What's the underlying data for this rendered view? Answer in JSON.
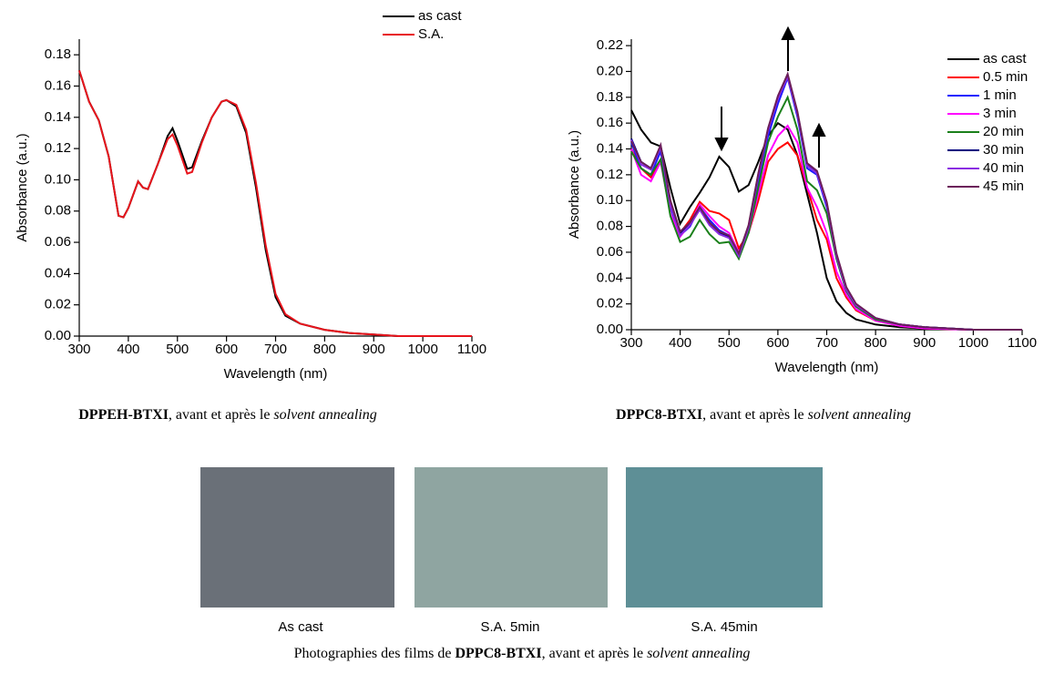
{
  "chart_data": [
    {
      "type": "line",
      "xlabel": "Wavelength (nm)",
      "ylabel": "Absorbance (a.u.)",
      "x": [
        300,
        320,
        340,
        360,
        380,
        390,
        400,
        420,
        430,
        440,
        460,
        480,
        490,
        500,
        520,
        530,
        550,
        570,
        590,
        600,
        620,
        640,
        660,
        680,
        700,
        720,
        750,
        800,
        850,
        900,
        950,
        1000,
        1100
      ],
      "series": [
        {
          "name": "as cast",
          "color": "#000000",
          "values": [
            0.17,
            0.15,
            0.138,
            0.115,
            0.077,
            0.076,
            0.082,
            0.099,
            0.095,
            0.094,
            0.11,
            0.128,
            0.133,
            0.125,
            0.107,
            0.108,
            0.125,
            0.14,
            0.15,
            0.151,
            0.147,
            0.13,
            0.095,
            0.055,
            0.025,
            0.013,
            0.008,
            0.004,
            0.002,
            0.001,
            0.0,
            0.0,
            0.0
          ]
        },
        {
          "name": "S.A.",
          "color": "#e8141c",
          "values": [
            0.17,
            0.15,
            0.138,
            0.115,
            0.077,
            0.076,
            0.082,
            0.099,
            0.095,
            0.094,
            0.11,
            0.126,
            0.129,
            0.122,
            0.104,
            0.105,
            0.124,
            0.14,
            0.15,
            0.151,
            0.148,
            0.132,
            0.098,
            0.058,
            0.027,
            0.014,
            0.008,
            0.004,
            0.002,
            0.001,
            0.0,
            0.0,
            0.0
          ]
        }
      ],
      "xlim": [
        300,
        1100
      ],
      "xticks": [
        300,
        400,
        500,
        600,
        700,
        800,
        900,
        1000,
        1100
      ],
      "ylim": [
        0,
        0.19
      ],
      "yticks": [
        {
          "value": 0,
          "label": "0.00"
        },
        {
          "value": 0.02,
          "label": "0.02"
        },
        {
          "value": 0.04,
          "label": "0.04"
        },
        {
          "value": 0.06,
          "label": "0.06"
        },
        {
          "value": 0.08,
          "label": "0.08"
        },
        {
          "value": 0.1,
          "label": "0.10"
        },
        {
          "value": 0.12,
          "label": "0.12"
        },
        {
          "value": 0.14,
          "label": "0.14"
        },
        {
          "value": 0.16,
          "label": "0.16"
        },
        {
          "value": 0.18,
          "label": "0.18"
        }
      ]
    },
    {
      "type": "line",
      "xlabel": "Wavelength (nm)",
      "ylabel": "Absorbance (a.u.)",
      "x": [
        300,
        320,
        340,
        360,
        380,
        400,
        420,
        440,
        460,
        480,
        500,
        520,
        540,
        560,
        580,
        600,
        620,
        640,
        660,
        680,
        700,
        720,
        740,
        760,
        800,
        850,
        900,
        1000,
        1100
      ],
      "series": [
        {
          "name": "as cast",
          "color": "#000000",
          "values": [
            0.17,
            0.155,
            0.145,
            0.142,
            0.11,
            0.082,
            0.095,
            0.106,
            0.118,
            0.134,
            0.126,
            0.107,
            0.112,
            0.13,
            0.15,
            0.16,
            0.155,
            0.135,
            0.105,
            0.075,
            0.04,
            0.022,
            0.013,
            0.008,
            0.004,
            0.002,
            0.001,
            0,
            0
          ]
        },
        {
          "name": "0.5 min",
          "color": "#ff0000",
          "values": [
            0.14,
            0.125,
            0.118,
            0.13,
            0.095,
            0.075,
            0.085,
            0.099,
            0.092,
            0.09,
            0.085,
            0.063,
            0.075,
            0.1,
            0.13,
            0.14,
            0.145,
            0.135,
            0.11,
            0.085,
            0.07,
            0.04,
            0.025,
            0.015,
            0.007,
            0.003,
            0.001,
            0,
            0
          ]
        },
        {
          "name": "1 min",
          "color": "#1a1aff",
          "values": [
            0.145,
            0.125,
            0.12,
            0.138,
            0.095,
            0.073,
            0.08,
            0.095,
            0.085,
            0.077,
            0.073,
            0.058,
            0.078,
            0.115,
            0.15,
            0.175,
            0.195,
            0.165,
            0.125,
            0.12,
            0.095,
            0.055,
            0.03,
            0.018,
            0.008,
            0.004,
            0.002,
            0,
            0
          ]
        },
        {
          "name": "3 min",
          "color": "#ff00ff",
          "values": [
            0.14,
            0.12,
            0.115,
            0.13,
            0.09,
            0.072,
            0.082,
            0.097,
            0.088,
            0.08,
            0.075,
            0.06,
            0.075,
            0.105,
            0.135,
            0.15,
            0.158,
            0.145,
            0.11,
            0.095,
            0.075,
            0.045,
            0.027,
            0.016,
            0.007,
            0.003,
            0.001,
            0,
            0
          ]
        },
        {
          "name": "20 min",
          "color": "#1a801a",
          "values": [
            0.138,
            0.125,
            0.12,
            0.132,
            0.088,
            0.068,
            0.072,
            0.085,
            0.074,
            0.067,
            0.068,
            0.055,
            0.075,
            0.11,
            0.145,
            0.165,
            0.18,
            0.155,
            0.115,
            0.108,
            0.09,
            0.055,
            0.03,
            0.018,
            0.008,
            0.004,
            0.002,
            0,
            0
          ]
        },
        {
          "name": "30 min",
          "color": "#000080",
          "values": [
            0.148,
            0.13,
            0.125,
            0.142,
            0.098,
            0.074,
            0.082,
            0.094,
            0.082,
            0.075,
            0.072,
            0.058,
            0.08,
            0.12,
            0.155,
            0.18,
            0.197,
            0.168,
            0.128,
            0.122,
            0.098,
            0.058,
            0.032,
            0.019,
            0.009,
            0.004,
            0.002,
            0,
            0
          ]
        },
        {
          "name": "40 min",
          "color": "#8a2be2",
          "values": [
            0.147,
            0.128,
            0.124,
            0.141,
            0.097,
            0.073,
            0.081,
            0.093,
            0.081,
            0.074,
            0.071,
            0.057,
            0.079,
            0.119,
            0.154,
            0.179,
            0.196,
            0.167,
            0.127,
            0.121,
            0.097,
            0.057,
            0.031,
            0.019,
            0.009,
            0.004,
            0.002,
            0,
            0
          ]
        },
        {
          "name": "45 min",
          "color": "#6b1e5a",
          "values": [
            0.146,
            0.13,
            0.125,
            0.143,
            0.1,
            0.076,
            0.083,
            0.095,
            0.083,
            0.076,
            0.073,
            0.059,
            0.081,
            0.121,
            0.156,
            0.181,
            0.198,
            0.169,
            0.129,
            0.123,
            0.099,
            0.059,
            0.033,
            0.02,
            0.009,
            0.004,
            0.002,
            0,
            0
          ]
        }
      ],
      "xlim": [
        300,
        1100
      ],
      "xticks": [
        300,
        400,
        500,
        600,
        700,
        800,
        900,
        1000,
        1100
      ],
      "ylim": [
        0,
        0.225
      ],
      "yticks": [
        {
          "value": 0,
          "label": "0.00"
        },
        {
          "value": 0.02,
          "label": "0.02"
        },
        {
          "value": 0.04,
          "label": "0.04"
        },
        {
          "value": 0.06,
          "label": "0.06"
        },
        {
          "value": 0.08,
          "label": "0.08"
        },
        {
          "value": 0.1,
          "label": "0.10"
        },
        {
          "value": 0.12,
          "label": "0.12"
        },
        {
          "value": 0.14,
          "label": "0.14"
        },
        {
          "value": 0.16,
          "label": "0.16"
        },
        {
          "value": 0.18,
          "label": "0.18"
        },
        {
          "value": 0.2,
          "label": "0.20"
        },
        {
          "value": 0.22,
          "label": "0.22"
        }
      ]
    }
  ],
  "captions": [
    {
      "bold": "DPPEH-BTXI",
      "text": ", avant et après le ",
      "italic": "solvent annealing"
    },
    {
      "bold": "DPPC8-BTXI",
      "text": ", avant et après le ",
      "italic": "solvent annealing"
    }
  ],
  "photos": [
    "As cast",
    "S.A. 5min",
    "S.A. 45min"
  ],
  "photo_caption": {
    "text": "Photographies des films de ",
    "bold": "DPPC8-BTXI",
    "text2": ", avant et après le ",
    "italic": "solvent annealing"
  }
}
